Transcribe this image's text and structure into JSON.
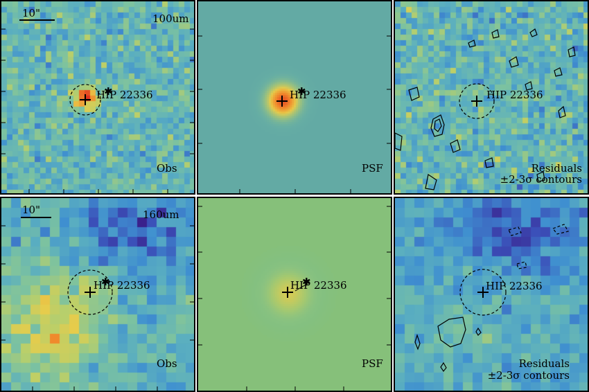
{
  "target_name": "HIP 22336",
  "scale_bar_label": "10\"",
  "rows": [
    {
      "band_label": "100um",
      "panels": [
        {
          "kind": "obs",
          "label": "Obs"
        },
        {
          "kind": "psf",
          "label": "PSF"
        },
        {
          "kind": "residual",
          "label": "Residuals",
          "sublabel": "±2-3σ contours"
        }
      ]
    },
    {
      "band_label": "160um",
      "panels": [
        {
          "kind": "obs",
          "label": "Obs"
        },
        {
          "kind": "psf",
          "label": "PSF"
        },
        {
          "kind": "residual",
          "label": "Residuals",
          "sublabel": "±2-3σ contours"
        }
      ]
    }
  ],
  "colormap": [
    "#3a0f7a",
    "#3b4fb8",
    "#3f8fd0",
    "#5aaec0",
    "#7cc2a0",
    "#b9cf6a",
    "#e8cc4a",
    "#f08a2c",
    "#e0301e"
  ],
  "psf_backgrounds": {
    "100um": "#63aaa4",
    "160um": "#86c07a"
  }
}
